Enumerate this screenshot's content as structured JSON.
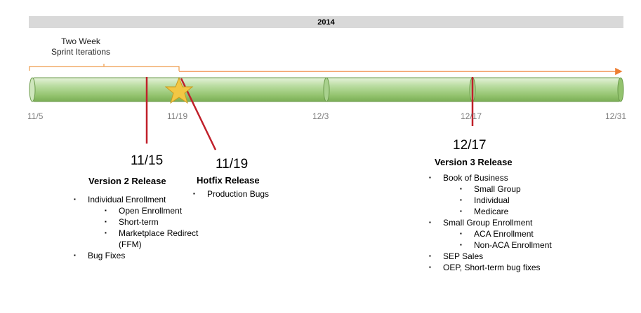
{
  "year": "2014",
  "sprint_label": [
    "Two Week",
    "Sprint Iterations"
  ],
  "timeline_dates": [
    "11/5",
    "11/19",
    "12/3",
    "12/17",
    "12/31"
  ],
  "colors": {
    "year_bar": "#d9d9d9",
    "timeline_fill": "#a9d18e",
    "timeline_stroke": "#6a9a4a",
    "arrow": "#ed7d31",
    "marker": "#c0202a",
    "star": "#f2c744",
    "date_text": "#7f7f7f"
  },
  "releases": [
    {
      "date": "11/15",
      "title": "Version 2 Release",
      "items": [
        {
          "level": 1,
          "text": "Individual  Enrollment"
        },
        {
          "level": 2,
          "text": "Open Enrollment"
        },
        {
          "level": 2,
          "text": "Short-term"
        },
        {
          "level": 2,
          "text": "Marketplace Redirect"
        },
        {
          "level": 0,
          "text": "(FFM)"
        },
        {
          "level": 1,
          "text": " Bug Fixes"
        }
      ]
    },
    {
      "date": "11/19",
      "title": "Hotfix Release",
      "items": [
        {
          "level": 1,
          "text": "Production Bugs"
        }
      ]
    },
    {
      "date": "12/17",
      "title": "Version 3 Release",
      "items": [
        {
          "level": 1,
          "text": "Book of Business"
        },
        {
          "level": 2,
          "text": "Small Group"
        },
        {
          "level": 2,
          "text": "Individual"
        },
        {
          "level": 2,
          "text": "Medicare"
        },
        {
          "level": 1,
          "text": "Small Group Enrollment"
        },
        {
          "level": 2,
          "text": "ACA Enrollment"
        },
        {
          "level": 2,
          "text": "Non-ACA  Enrollment"
        },
        {
          "level": 1,
          "text": "SEP Sales"
        },
        {
          "level": 1,
          "text": "OEP, Short-term bug fixes"
        }
      ]
    }
  ]
}
